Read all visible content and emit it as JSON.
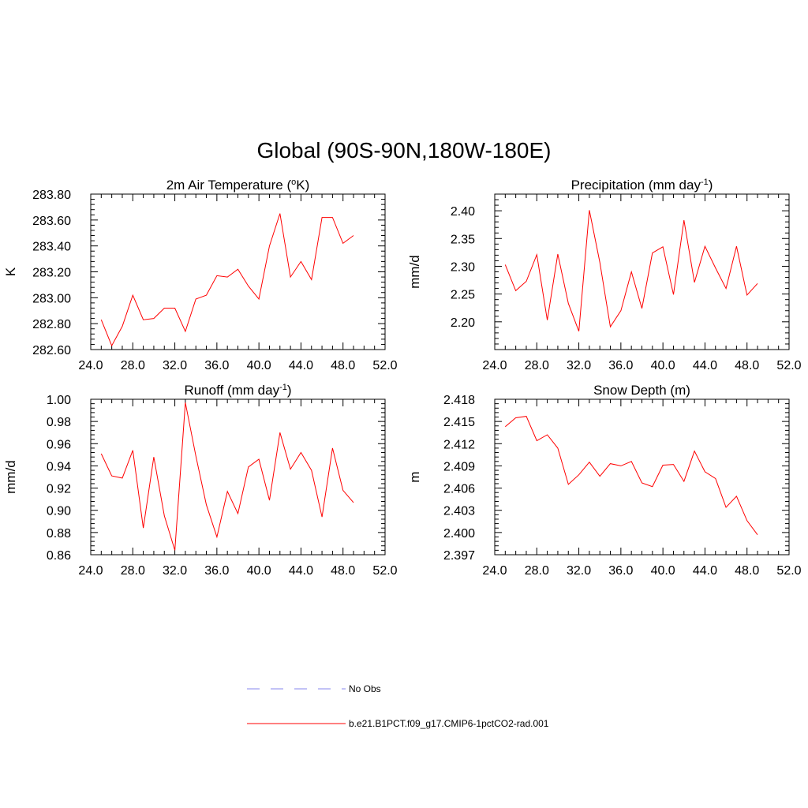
{
  "figure": {
    "title": "Global (90S-90N,180W-180E)"
  },
  "legend": {
    "items": [
      {
        "label": "No Obs",
        "color": "#9f9ff0",
        "style": "dashed"
      },
      {
        "label": "b.e21.B1PCT.f09_g17.CMIP6-1pctCO2-rad.001",
        "color": "#ff0000",
        "style": "solid"
      }
    ]
  },
  "chart_data": [
    {
      "type": "line",
      "title": "2m Air Temperature (",
      "title_super": "o",
      "title_tail": "K)",
      "ylabel": "K",
      "xlim": [
        24,
        52
      ],
      "ylim": [
        282.6,
        283.8
      ],
      "xticks": [
        "24.0",
        "28.0",
        "32.0",
        "36.0",
        "40.0",
        "44.0",
        "48.0",
        "52.0"
      ],
      "yticks": [
        "282.60",
        "282.80",
        "283.00",
        "283.20",
        "283.40",
        "283.60",
        "283.80"
      ],
      "x": [
        25,
        26,
        27,
        28,
        29,
        30,
        31,
        32,
        33,
        34,
        35,
        36,
        37,
        38,
        39,
        40,
        41,
        42,
        43,
        44,
        45,
        46,
        47,
        48,
        49
      ],
      "series": [
        {
          "color": "#ff0000",
          "values": [
            282.83,
            282.63,
            282.78,
            283.02,
            282.83,
            282.84,
            282.92,
            282.92,
            282.74,
            282.99,
            283.02,
            283.17,
            283.16,
            283.22,
            283.09,
            282.99,
            283.4,
            283.65,
            283.16,
            283.28,
            283.14,
            283.62,
            283.62,
            283.42,
            283.48
          ]
        }
      ]
    },
    {
      "type": "line",
      "title": "Precipitation (mm day",
      "title_super": "-1",
      "title_tail": ")",
      "ylabel": "mm/d",
      "xlim": [
        24,
        52
      ],
      "ylim": [
        2.15,
        2.43
      ],
      "xticks": [
        "24.0",
        "28.0",
        "32.0",
        "36.0",
        "40.0",
        "44.0",
        "48.0",
        "52.0"
      ],
      "yticks": [
        "2.20",
        "2.25",
        "2.30",
        "2.35",
        "2.40"
      ],
      "x": [
        25,
        26,
        27,
        28,
        29,
        30,
        31,
        32,
        33,
        34,
        35,
        36,
        37,
        38,
        39,
        40,
        41,
        42,
        43,
        44,
        45,
        46,
        47,
        48,
        49
      ],
      "series": [
        {
          "color": "#ff0000",
          "values": [
            2.303,
            2.256,
            2.273,
            2.321,
            2.203,
            2.322,
            2.233,
            2.183,
            2.401,
            2.307,
            2.191,
            2.22,
            2.29,
            2.224,
            2.324,
            2.335,
            2.249,
            2.383,
            2.271,
            2.336,
            2.297,
            2.26,
            2.336,
            2.248,
            2.269
          ]
        }
      ]
    },
    {
      "type": "line",
      "title": "Runoff (mm day",
      "title_super": "-1",
      "title_tail": ")",
      "ylabel": "mm/d",
      "xlim": [
        24,
        52
      ],
      "ylim": [
        0.86,
        1.0
      ],
      "xticks": [
        "24.0",
        "28.0",
        "32.0",
        "36.0",
        "40.0",
        "44.0",
        "48.0",
        "52.0"
      ],
      "yticks": [
        "0.86",
        "0.88",
        "0.90",
        "0.92",
        "0.94",
        "0.96",
        "0.98",
        "1.00"
      ],
      "x": [
        25,
        26,
        27,
        28,
        29,
        30,
        31,
        32,
        33,
        34,
        35,
        36,
        37,
        38,
        39,
        40,
        41,
        42,
        43,
        44,
        45,
        46,
        47,
        48,
        49
      ],
      "series": [
        {
          "color": "#ff0000",
          "values": [
            0.951,
            0.931,
            0.929,
            0.954,
            0.884,
            0.948,
            0.895,
            0.864,
            0.997,
            0.949,
            0.905,
            0.876,
            0.917,
            0.897,
            0.939,
            0.946,
            0.909,
            0.97,
            0.937,
            0.952,
            0.936,
            0.894,
            0.956,
            0.918,
            0.907
          ]
        }
      ]
    },
    {
      "type": "line",
      "title": "Snow Depth (m)",
      "title_super": "",
      "title_tail": "",
      "ylabel": "m",
      "xlim": [
        24,
        52
      ],
      "ylim": [
        2.397,
        2.418
      ],
      "xticks": [
        "24.0",
        "28.0",
        "32.0",
        "36.0",
        "40.0",
        "44.0",
        "48.0",
        "52.0"
      ],
      "yticks": [
        "2.397",
        "2.400",
        "2.403",
        "2.406",
        "2.409",
        "2.412",
        "2.415",
        "2.418"
      ],
      "x": [
        25,
        26,
        27,
        28,
        29,
        30,
        31,
        32,
        33,
        34,
        35,
        36,
        37,
        38,
        39,
        40,
        41,
        42,
        43,
        44,
        45,
        46,
        47,
        48,
        49
      ],
      "series": [
        {
          "color": "#ff0000",
          "values": [
            2.4143,
            2.4155,
            2.4157,
            2.4124,
            2.4132,
            2.4114,
            2.4065,
            2.4078,
            2.4095,
            2.4076,
            2.4093,
            2.409,
            2.4096,
            2.4067,
            2.4062,
            2.4091,
            2.4092,
            2.4069,
            2.411,
            2.4082,
            2.4073,
            2.4034,
            2.4049,
            2.4016,
            2.3997
          ]
        }
      ]
    }
  ]
}
